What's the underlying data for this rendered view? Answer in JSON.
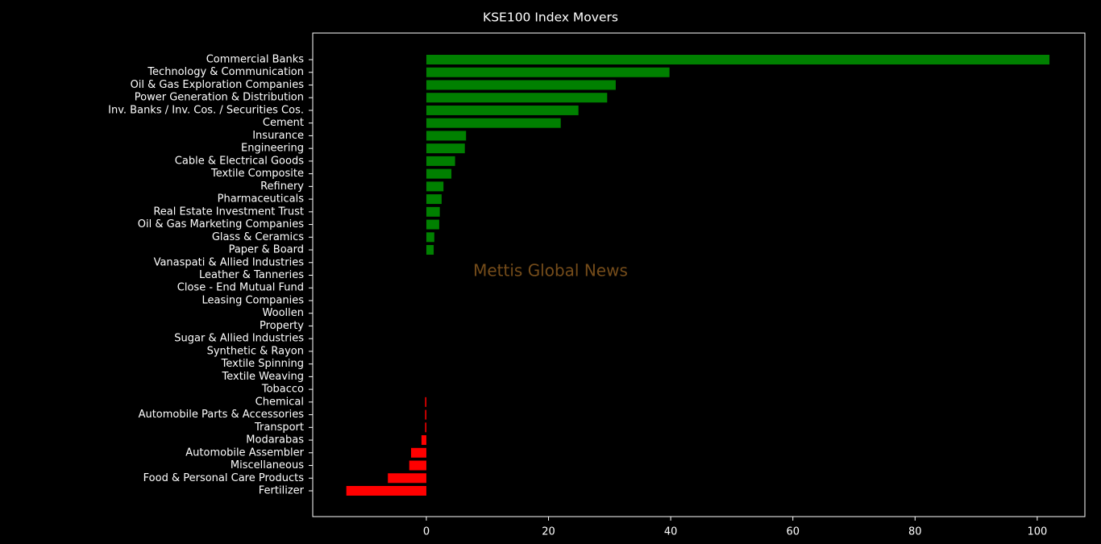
{
  "chart_data": {
    "type": "barh",
    "title": "KSE100 Index Movers",
    "watermark": "Mettis Global News",
    "categories": [
      "Commercial Banks",
      "Technology & Communication",
      "Oil & Gas Exploration Companies",
      "Power Generation & Distribution",
      "Inv. Banks / Inv. Cos. / Securities Cos.",
      "Cement",
      "Insurance",
      "Engineering",
      "Cable & Electrical Goods",
      "Textile Composite",
      "Refinery",
      "Pharmaceuticals",
      "Real Estate Investment Trust",
      "Oil & Gas Marketing Companies",
      "Glass & Ceramics",
      "Paper & Board",
      "Vanaspati & Allied Industries",
      "Leather & Tanneries",
      "Close - End Mutual Fund",
      "Leasing Companies",
      "Woollen",
      "Property",
      "Sugar & Allied Industries",
      "Synthetic & Rayon",
      "Textile Spinning",
      "Textile Weaving",
      "Tobacco",
      "Chemical",
      "Automobile Parts & Accessories",
      "Transport",
      "Modarabas",
      "Automobile Assembler",
      "Miscellaneous",
      "Food & Personal Care Products",
      "Fertilizer"
    ],
    "values": [
      102.0,
      39.8,
      31.0,
      29.6,
      24.9,
      22.0,
      6.5,
      6.3,
      4.7,
      4.1,
      2.8,
      2.5,
      2.2,
      2.1,
      1.3,
      1.2,
      0,
      0,
      0,
      0,
      0,
      0,
      0,
      0,
      0,
      0,
      0,
      -0.2,
      -0.2,
      -0.2,
      -0.8,
      -2.5,
      -2.8,
      -6.3,
      -13.1
    ],
    "positive_color": "#008000",
    "negative_color": "#ff0000",
    "xlim": [
      -18.6,
      107.8
    ],
    "xticks": [
      0,
      20,
      40,
      60,
      80,
      100
    ]
  }
}
